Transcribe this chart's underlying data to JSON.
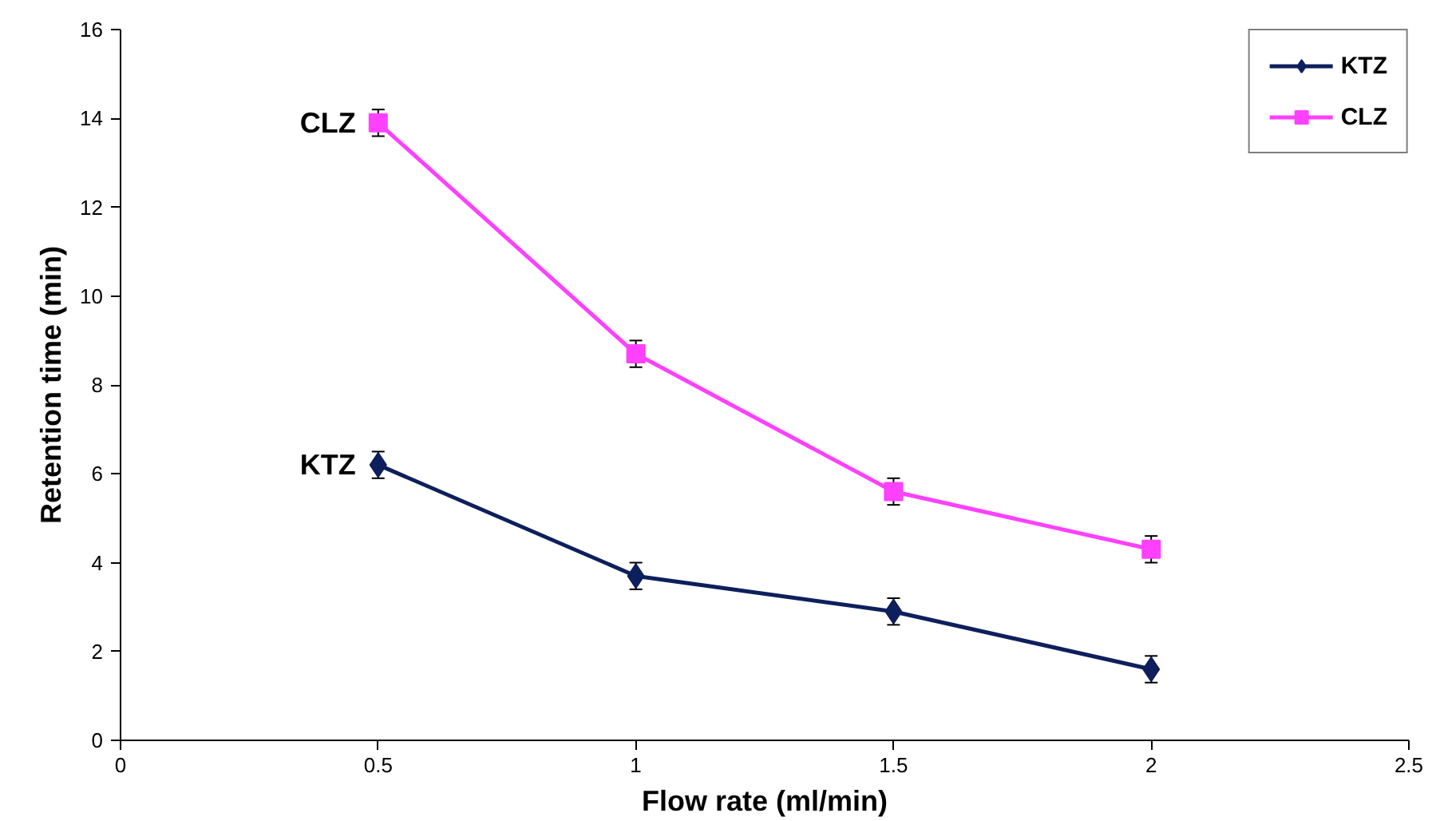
{
  "chart_data": {
    "type": "line",
    "xlabel": "Flow rate (ml/min)",
    "ylabel": "Retention time (min)",
    "x": [
      0.5,
      1,
      1.5,
      2
    ],
    "series": [
      {
        "name": "KTZ",
        "color": "#0d1f5c",
        "marker": "diamond",
        "values": [
          6.2,
          3.7,
          2.9,
          1.6
        ],
        "errors": [
          0.3,
          0.3,
          0.3,
          0.3
        ]
      },
      {
        "name": "CLZ",
        "color": "#ff40ff",
        "marker": "square",
        "values": [
          13.9,
          8.7,
          5.6,
          4.3
        ],
        "errors": [
          0.3,
          0.3,
          0.3,
          0.3
        ]
      }
    ],
    "xlim": [
      0,
      2.5
    ],
    "xticks": [
      0,
      0.5,
      1,
      1.5,
      2,
      2.5
    ],
    "ylim": [
      0,
      16
    ],
    "yticks": [
      0,
      2,
      4,
      6,
      8,
      10,
      12,
      14,
      16
    ],
    "grid": false,
    "legend": "top right",
    "line_style": "solid",
    "annotations": [
      {
        "text": "CLZ",
        "x": 0.5,
        "y": 13.9
      },
      {
        "text": "KTZ",
        "x": 0.5,
        "y": 6.2
      }
    ]
  }
}
